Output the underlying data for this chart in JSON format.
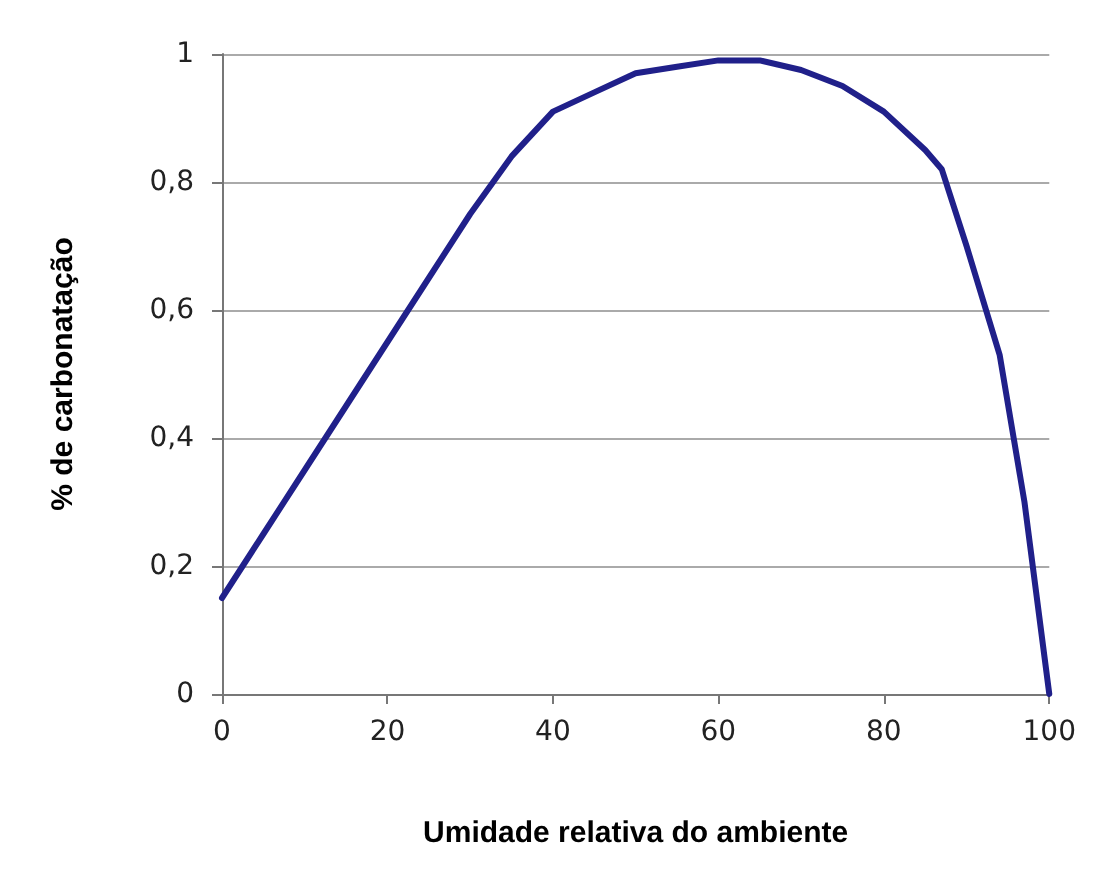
{
  "chart_data": {
    "type": "line",
    "xlabel": "Umidade relativa do ambiente",
    "ylabel": "% de carbonatação",
    "x": [
      0,
      5,
      10,
      15,
      20,
      25,
      30,
      35,
      40,
      45,
      50,
      55,
      60,
      65,
      70,
      75,
      80,
      85,
      87,
      90,
      94,
      97,
      100
    ],
    "series": [
      {
        "color": "#20208a",
        "values": [
          0.15,
          0.25,
          0.35,
          0.45,
          0.55,
          0.65,
          0.75,
          0.84,
          0.91,
          0.94,
          0.97,
          0.98,
          0.99,
          0.99,
          0.975,
          0.95,
          0.91,
          0.85,
          0.82,
          0.7,
          0.53,
          0.3,
          0
        ]
      }
    ],
    "xlim": [
      0,
      100
    ],
    "xticks": [
      0,
      20,
      40,
      60,
      80,
      100
    ],
    "ylim": [
      0,
      1
    ],
    "yticks": [
      {
        "value": 0,
        "label": "0"
      },
      {
        "value": 0.2,
        "label": "0,2"
      },
      {
        "value": 0.4,
        "label": "0,4"
      },
      {
        "value": 0.6,
        "label": "0,6"
      },
      {
        "value": 0.8,
        "label": "0,8"
      },
      {
        "value": 1,
        "label": "1"
      }
    ],
    "grid": "y",
    "marker": "none",
    "line_style": "solid"
  }
}
